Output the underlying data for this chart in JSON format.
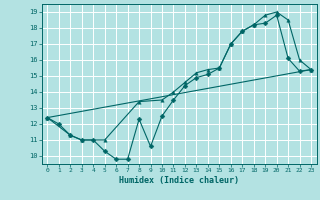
{
  "xlabel": "Humidex (Indice chaleur)",
  "bg_color": "#b3e2e2",
  "grid_color": "#ffffff",
  "line_color": "#006666",
  "xlim": [
    -0.5,
    23.5
  ],
  "ylim": [
    9.5,
    19.5
  ],
  "xticks": [
    0,
    1,
    2,
    3,
    4,
    5,
    6,
    7,
    8,
    9,
    10,
    11,
    12,
    13,
    14,
    15,
    16,
    17,
    18,
    19,
    20,
    21,
    22,
    23
  ],
  "yticks": [
    10,
    11,
    12,
    13,
    14,
    15,
    16,
    17,
    18,
    19
  ],
  "series1_x": [
    0,
    1,
    2,
    3,
    4,
    5,
    6,
    7,
    8,
    9,
    10,
    11,
    12,
    13,
    14,
    15,
    16,
    17,
    18,
    19,
    20,
    21,
    22,
    23
  ],
  "series1_y": [
    12.4,
    12.0,
    11.3,
    11.0,
    11.0,
    10.3,
    9.8,
    9.8,
    12.3,
    10.6,
    12.5,
    13.5,
    14.4,
    14.9,
    15.1,
    15.5,
    17.0,
    17.8,
    18.2,
    18.3,
    18.8,
    16.1,
    15.3,
    15.4
  ],
  "series2_x": [
    0,
    2,
    3,
    5,
    8,
    10,
    11,
    12,
    13,
    14,
    15,
    16,
    17,
    18,
    19,
    20,
    21,
    22,
    23
  ],
  "series2_y": [
    12.4,
    11.3,
    11.0,
    11.0,
    13.4,
    13.5,
    14.0,
    14.6,
    15.2,
    15.4,
    15.5,
    17.0,
    17.8,
    18.2,
    18.8,
    19.0,
    18.5,
    16.0,
    15.4
  ],
  "series3_x": [
    0,
    23
  ],
  "series3_y": [
    12.4,
    15.4
  ],
  "marker_size": 2.5
}
